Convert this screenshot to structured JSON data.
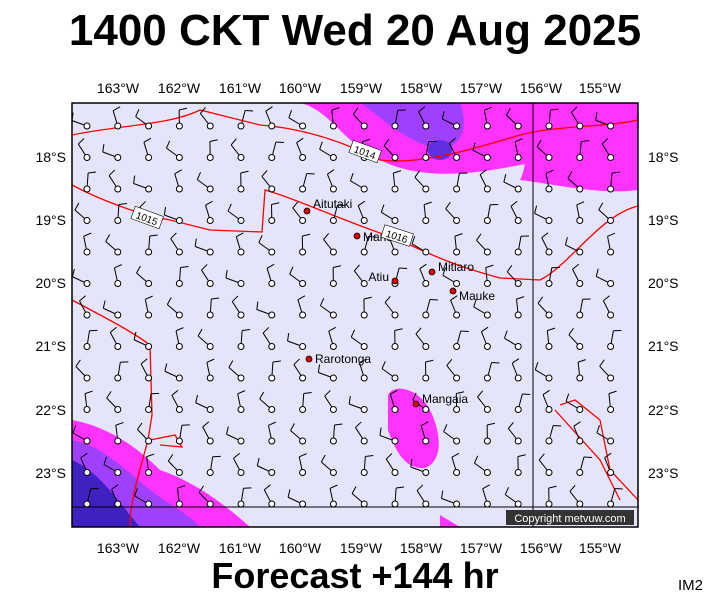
{
  "title": "1400 CKT Wed 20 Aug 2025",
  "footer": "Forecast +144 hr",
  "corner_label": "IM2",
  "copyright": "Copyright metvuw.com",
  "longitude_labels": [
    "163°W",
    "162°W",
    "161°W",
    "160°W",
    "159°W",
    "158°W",
    "157°W",
    "156°W",
    "155°W"
  ],
  "latitude_labels": [
    "18°S",
    "19°S",
    "20°S",
    "21°S",
    "22°S",
    "23°S"
  ],
  "places": [
    {
      "name": "Aitutaki"
    },
    {
      "name": "Manuae"
    },
    {
      "name": "Atiu"
    },
    {
      "name": "Mitiaro"
    },
    {
      "name": "Mauke"
    },
    {
      "name": "Rarotonga"
    },
    {
      "name": "Mangaia"
    }
  ],
  "isobar_labels": [
    "1014",
    "1015",
    "1016"
  ]
}
